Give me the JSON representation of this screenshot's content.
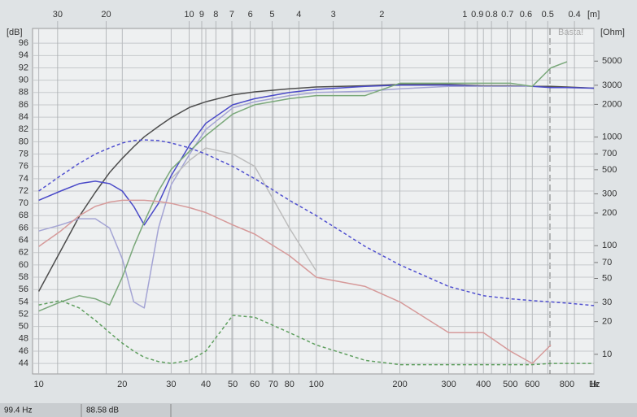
{
  "chart_data": {
    "type": "line",
    "y_label": "[dB]",
    "y2_label": "[Ohm]",
    "x_unit": "Hz",
    "x2_unit": "[m]",
    "watermark": "Basta!",
    "xscale": "log",
    "y2scale": "log",
    "x2scale": "log",
    "grid": true,
    "xlim": [
      9.5,
      1000
    ],
    "ylim": [
      42.3,
      98.4
    ],
    "y2lim": [
      6.6,
      10000
    ],
    "x2lim": [
      37,
      0.34
    ],
    "xticks": [
      10,
      20,
      30,
      40,
      50,
      60,
      70,
      80,
      100,
      200,
      300,
      400,
      500,
      600,
      800,
      {
        "value": 1000,
        "label": "1k"
      }
    ],
    "yticks": [
      44,
      46,
      48,
      50,
      52,
      54,
      56,
      58,
      60,
      62,
      64,
      66,
      68,
      70,
      72,
      74,
      76,
      78,
      80,
      82,
      84,
      86,
      88,
      90,
      92,
      94,
      96
    ],
    "y2ticks": [
      10,
      20,
      30,
      50,
      70,
      100,
      200,
      300,
      500,
      700,
      1000,
      2000,
      3000,
      5000
    ],
    "x2ticks": [
      30,
      20,
      10,
      9,
      8,
      7,
      6,
      5,
      4,
      3,
      2,
      1,
      0.9,
      0.8,
      0.7,
      0.6,
      0.5,
      0.4
    ],
    "x": [
      10,
      12,
      14,
      16,
      18,
      20,
      22,
      24,
      27,
      30,
      35,
      40,
      50,
      60,
      80,
      100,
      150,
      200,
      300,
      400,
      500,
      600,
      700,
      800,
      1000
    ],
    "series": [
      {
        "color": "#4d4d4d",
        "dash": false,
        "values": [
          55.7,
          62.3,
          67.9,
          71.8,
          75,
          77.3,
          79.2,
          80.8,
          82.5,
          83.9,
          85.6,
          86.5,
          87.6,
          88.1,
          88.6,
          88.9,
          89.1,
          89.3,
          89.3,
          89.1,
          89.1,
          89,
          89,
          88.9,
          88.7
        ]
      },
      {
        "color": "#4a4ac8",
        "dash": false,
        "values": [
          70.5,
          72,
          73.2,
          73.6,
          73.2,
          72,
          69.5,
          66.5,
          70,
          74.5,
          79.5,
          83,
          86,
          87,
          88,
          88.5,
          89,
          89.2,
          89.2,
          89,
          89,
          89,
          88.8,
          88.8,
          88.7
        ]
      },
      {
        "color": "#a4a4d4",
        "dash": false,
        "values": [
          65.5,
          66.5,
          67.5,
          67.5,
          66,
          61,
          54,
          53,
          66,
          73,
          78,
          82,
          85.5,
          86.5,
          87.5,
          88,
          88.2,
          88.6,
          89,
          89,
          89,
          89,
          null,
          null,
          null
        ]
      },
      {
        "color": "#7aa87a",
        "dash": false,
        "values": [
          52.5,
          54,
          55,
          54.5,
          53.5,
          58,
          63,
          67,
          72,
          75.5,
          78.5,
          81,
          84.5,
          86,
          87,
          87.5,
          87.5,
          89.5,
          89.5,
          89.5,
          89.5,
          89,
          92,
          93,
          null
        ]
      },
      {
        "color": "#bdbdbd",
        "dash": false,
        "values": [
          null,
          null,
          null,
          null,
          null,
          null,
          null,
          null,
          null,
          74,
          77,
          79,
          78,
          76,
          66,
          59,
          null,
          null,
          null,
          null,
          null,
          null,
          null,
          null,
          null
        ]
      },
      {
        "color": "#d69a9a",
        "dash": false,
        "values": [
          63,
          65.5,
          68,
          69.5,
          70.2,
          70.5,
          70.5,
          70.5,
          70.3,
          70,
          69.3,
          68.5,
          66.5,
          65,
          61.5,
          58,
          56.5,
          54,
          49,
          49,
          46,
          44,
          47,
          null,
          null
        ]
      },
      {
        "color": "#5050d0",
        "dash": true,
        "values": [
          72,
          74.5,
          76.5,
          78,
          79,
          79.8,
          80.2,
          80.3,
          80.2,
          79.8,
          79,
          78,
          76,
          74,
          70.5,
          68,
          63,
          60,
          56.5,
          55,
          54.5,
          54.2,
          54,
          53.8,
          53.4
        ]
      },
      {
        "color": "#5f9f5f",
        "dash": true,
        "values": [
          53.5,
          54.2,
          53,
          51,
          49,
          47.3,
          46,
          45,
          44.3,
          44,
          44.5,
          46,
          51.8,
          51.5,
          49,
          47,
          44.5,
          43.8,
          43.8,
          43.8,
          43.8,
          43.8,
          44,
          44,
          44
        ]
      }
    ]
  },
  "status_bar": {
    "frequency": "99.4 Hz",
    "level": "88.58 dB"
  }
}
